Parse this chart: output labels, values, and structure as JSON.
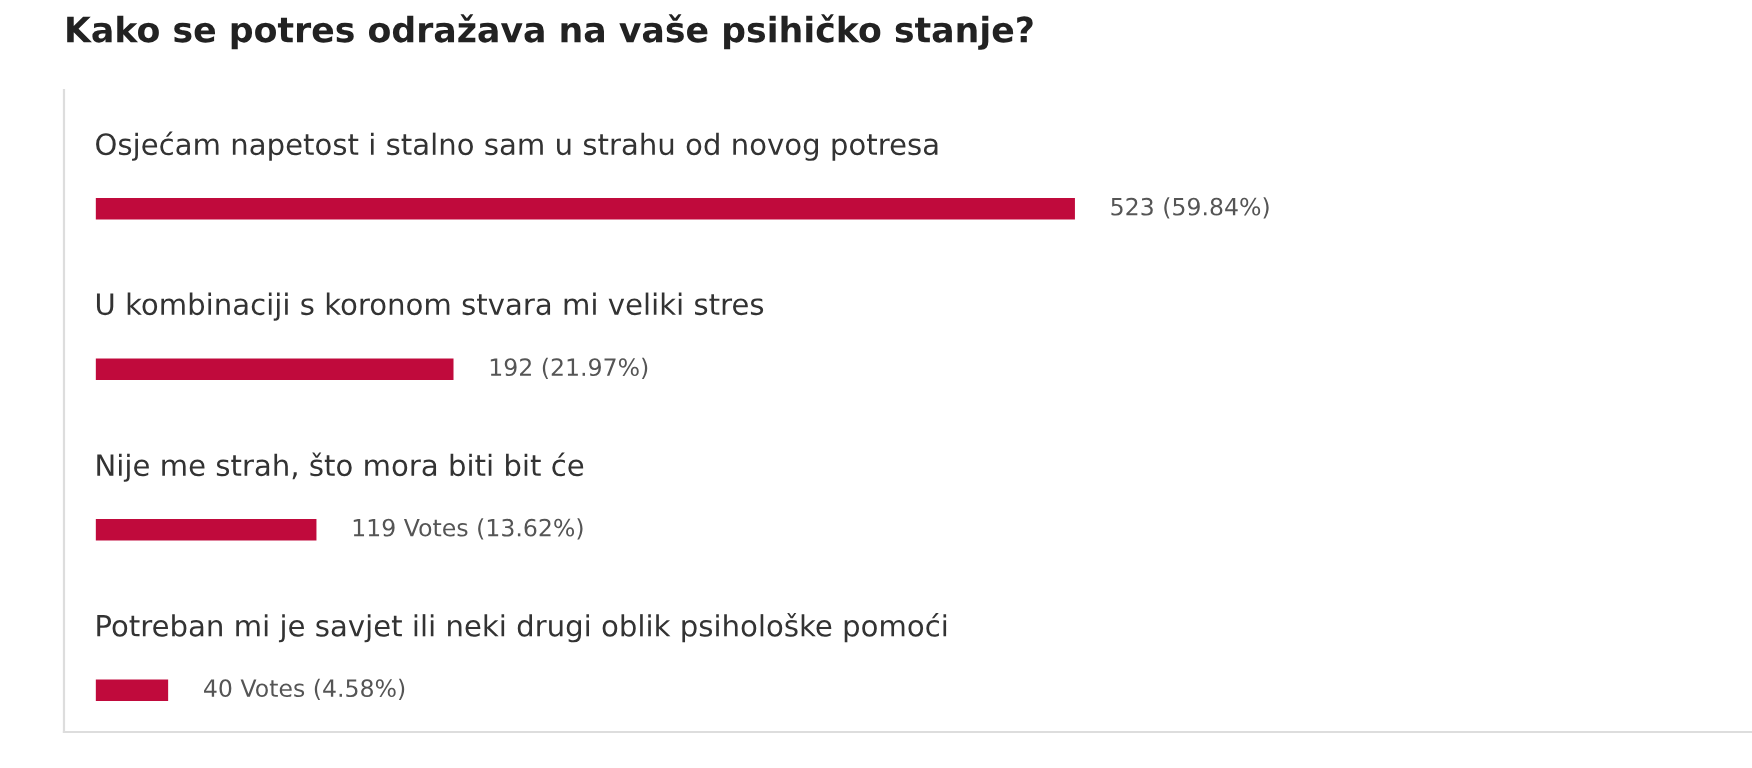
{
  "chart_data": {
    "type": "bar",
    "orientation": "horizontal",
    "title": "Kako se potres odražava na vaše psihičko stanje?",
    "categories": [
      "Osjećam napetost i stalno sam u strahu od novog potresa",
      "U kombinaciji s koronom stvara mi veliki stres",
      "Nije me strah, što mora biti bit će",
      "Potreban mi je savjet ili neki drugi oblik psihološke pomoći"
    ],
    "values": [
      523,
      192,
      119,
      40
    ],
    "value_labels": [
      "523 (59.84%)",
      "192 (21.97%)",
      "119 Votes (13.62%)",
      "40 Votes (4.58%)"
    ],
    "color": "#c00a3c",
    "tick_labels": false,
    "legend": false
  }
}
